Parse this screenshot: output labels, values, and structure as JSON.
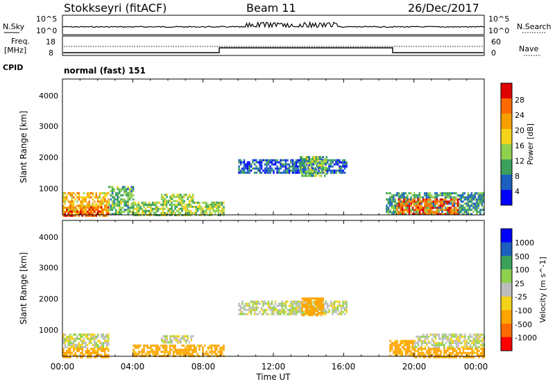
{
  "header": {
    "station": "Stokkseyri (fitACF)",
    "beam": "Beam 11",
    "date": "26/Dec/2017"
  },
  "nsky_panel": {
    "label": "N.Sky",
    "right_label": "N.Search",
    "tick_top": "10^5",
    "tick_bottom": "10^0"
  },
  "freq_panel": {
    "label_line1": "Freq.",
    "label_line2": "[MHz]",
    "left_ticks": [
      "18",
      "8"
    ],
    "right_ticks": [
      "60",
      "0"
    ],
    "right_label": "Nave",
    "cpid_label": "CPID",
    "cpid_value": "normal (fast) 151"
  },
  "axes": {
    "ylabel": "Slant Range [km]",
    "xlabel": "Time UT",
    "y_ticks": [
      "1000",
      "2000",
      "3000",
      "4000"
    ],
    "x_ticks": [
      "00:00",
      "04:00",
      "08:00",
      "12:00",
      "16:00",
      "20:00",
      "00:00"
    ]
  },
  "colors": {
    "power": [
      "#0000ff",
      "#1d5fbf",
      "#3aa05a",
      "#8fd14f",
      "#f5d31a",
      "#f5a000",
      "#ff6a00",
      "#e00000"
    ],
    "velocity": [
      "#ff0000",
      "#ff6a00",
      "#ffa500",
      "#f5d31a",
      "#bdbdbd",
      "#8fd14f",
      "#3aa05a",
      "#1d5fbf",
      "#0000ff"
    ]
  },
  "chart_data": [
    {
      "type": "heatmap",
      "title": "Power",
      "colorbar_label": "Power [dB]",
      "colorbar_ticks": [
        "4",
        "8",
        "12",
        "16",
        "20",
        "24",
        "28"
      ],
      "x_range_hours": [
        0,
        24
      ],
      "ylim": [
        180,
        4500
      ],
      "regions": [
        {
          "t": [
            0,
            2.6
          ],
          "r": [
            180,
            900
          ],
          "level": 20
        },
        {
          "t": [
            0,
            2.6
          ],
          "r": [
            180,
            450
          ],
          "level": 26
        },
        {
          "t": [
            2.6,
            4.0
          ],
          "r": [
            180,
            1100
          ],
          "level": 12
        },
        {
          "t": [
            4.0,
            9.2
          ],
          "r": [
            180,
            600
          ],
          "level": 14
        },
        {
          "t": [
            5.6,
            7.4
          ],
          "r": [
            650,
            850
          ],
          "level": 14
        },
        {
          "t": [
            10.0,
            16.2
          ],
          "r": [
            1500,
            1950
          ],
          "level": 6
        },
        {
          "t": [
            13.5,
            15.0
          ],
          "r": [
            1450,
            2050
          ],
          "level": 12
        },
        {
          "t": [
            18.4,
            24
          ],
          "r": [
            180,
            900
          ],
          "level": 10
        },
        {
          "t": [
            19.0,
            22.5
          ],
          "r": [
            180,
            700
          ],
          "level": 26
        }
      ]
    },
    {
      "type": "heatmap",
      "title": "Velocity",
      "colorbar_label": "Velocity [m s^-1]",
      "colorbar_ticks": [
        "1000",
        "500",
        "100",
        "25",
        "-25",
        "-100",
        "-500",
        "-1000"
      ],
      "x_range_hours": [
        0,
        24
      ],
      "ylim": [
        180,
        4500
      ],
      "regions": [
        {
          "t": [
            0,
            2.6
          ],
          "r": [
            450,
            900
          ],
          "level": 0
        },
        {
          "t": [
            0,
            2.6
          ],
          "r": [
            180,
            450
          ],
          "level": -150
        },
        {
          "t": [
            4.0,
            9.2
          ],
          "r": [
            180,
            550
          ],
          "level": -150
        },
        {
          "t": [
            5.6,
            7.4
          ],
          "r": [
            650,
            850
          ],
          "level": 0
        },
        {
          "t": [
            10.0,
            16.2
          ],
          "r": [
            1500,
            1950
          ],
          "level": 0
        },
        {
          "t": [
            13.6,
            14.8
          ],
          "r": [
            1500,
            2050
          ],
          "level": -300
        },
        {
          "t": [
            18.6,
            20.0
          ],
          "r": [
            180,
            700
          ],
          "level": -150
        },
        {
          "t": [
            20.0,
            24
          ],
          "r": [
            450,
            900
          ],
          "level": 0
        },
        {
          "t": [
            20.0,
            24
          ],
          "r": [
            180,
            450
          ],
          "level": -150
        }
      ]
    }
  ]
}
